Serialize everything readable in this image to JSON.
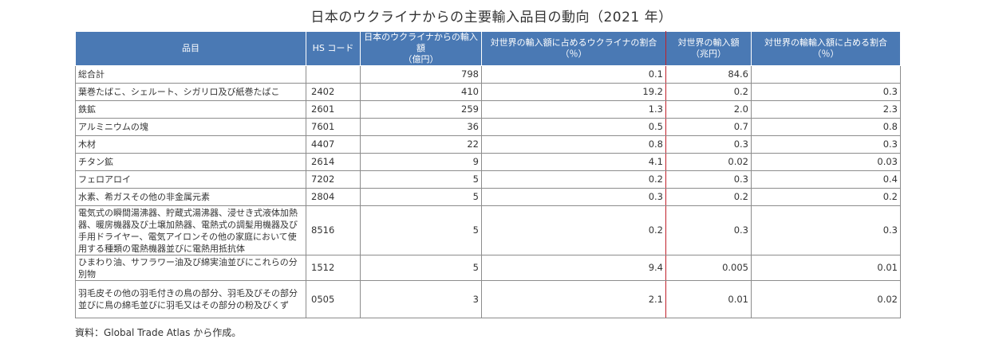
{
  "title": "日本のウクライナからの主要輸入品目の動向（2021 年）",
  "headers": {
    "item": "品目",
    "hs_code": "HS コード",
    "import_value": "日本のウクライナからの輸入額\n（億円）",
    "share_of_world": "対世界の輸入額に占めるウクライナの割合\n（％）",
    "world_import": "対世界の輸入額\n（兆円）",
    "share_of_total": "対世界の輸輸入額に占める割合\n（％）"
  },
  "rows": [
    {
      "item": "総合計",
      "hs": "",
      "import": "798",
      "share": "0.1",
      "world": "84.6",
      "total_share": ""
    },
    {
      "item": "葉巻たばこ、シェルート、シガリロ及び紙巻たばこ",
      "hs": "2402",
      "import": "410",
      "share": "19.2",
      "world": "0.2",
      "total_share": "0.3"
    },
    {
      "item": "鉄鉱",
      "hs": "2601",
      "import": "259",
      "share": "1.3",
      "world": "2.0",
      "total_share": "2.3"
    },
    {
      "item": "アルミニウムの塊",
      "hs": "7601",
      "import": "36",
      "share": "0.5",
      "world": "0.7",
      "total_share": "0.8"
    },
    {
      "item": "木材",
      "hs": "4407",
      "import": "22",
      "share": "0.8",
      "world": "0.3",
      "total_share": "0.3"
    },
    {
      "item": "チタン鉱",
      "hs": "2614",
      "import": "9",
      "share": "4.1",
      "world": "0.02",
      "total_share": "0.03"
    },
    {
      "item": "フェロアロイ",
      "hs": "7202",
      "import": "5",
      "share": "0.2",
      "world": "0.3",
      "total_share": "0.4"
    },
    {
      "item": "水素、希ガスその他の非金属元素",
      "hs": "2804",
      "import": "5",
      "share": "0.3",
      "world": "0.2",
      "total_share": "0.2"
    },
    {
      "item": "電気式の瞬間湯沸器、貯蔵式湯沸器、浸せき式液体加熱器、暖房機器及び土壌加熱器、電熱式の調髪用機器及び手用ドライヤー、電気アイロンその他の家庭において使用する種類の電熱機器並びに電熱用抵抗体",
      "hs": "8516",
      "import": "5",
      "share": "0.2",
      "world": "0.3",
      "total_share": "0.3"
    },
    {
      "item": "ひまわり油、サフラワー油及び綿実油並びにこれらの分別物",
      "hs": "1512",
      "import": "5",
      "share": "9.4",
      "world": "0.005",
      "total_share": "0.01"
    },
    {
      "item": "羽毛皮その他の羽毛付きの鳥の部分、羽毛及びその部分並びに鳥の綿毛並びに羽毛又はその部分の粉及びくず",
      "hs": "0505",
      "import": "3",
      "share": "2.1",
      "world": "0.01",
      "total_share": "0.02"
    }
  ],
  "source": "資料：Global Trade Atlas から作成。"
}
